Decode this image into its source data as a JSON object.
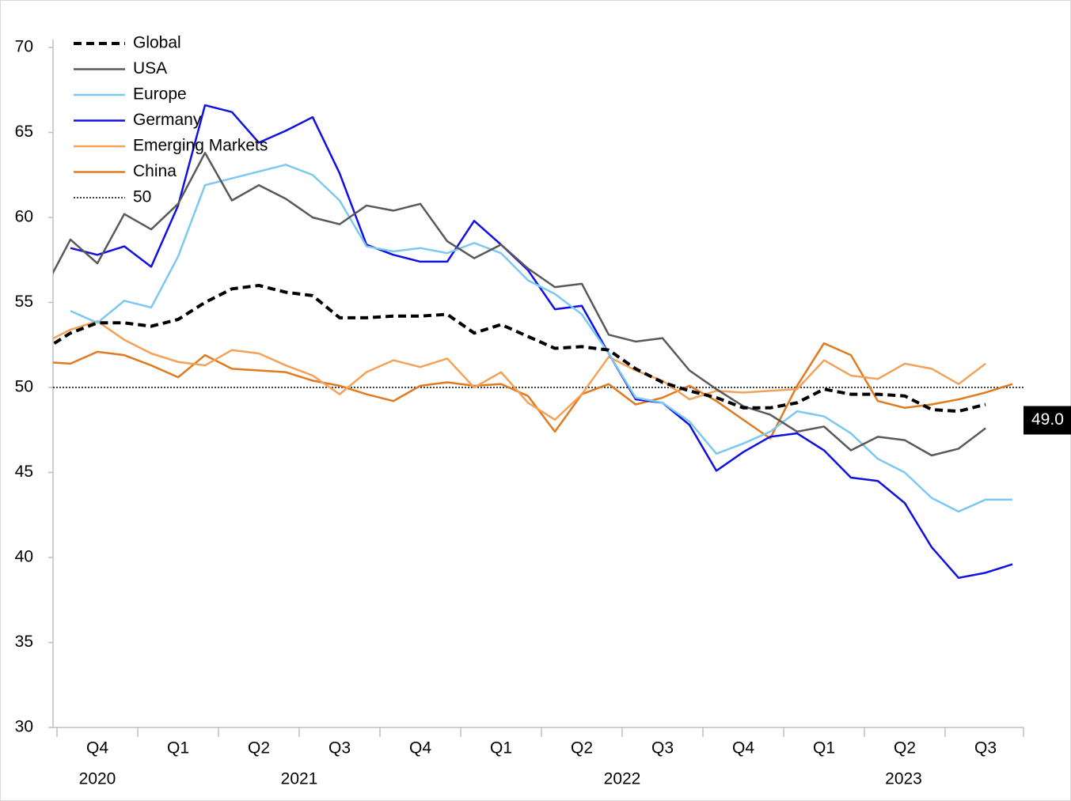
{
  "chart_data": {
    "type": "line",
    "categories": [
      null,
      null,
      "Q4",
      null,
      null,
      "Q1",
      null,
      null,
      "Q2",
      null,
      null,
      "Q3",
      null,
      null,
      "Q4",
      null,
      null,
      "Q1",
      null,
      null,
      "Q2",
      null,
      null,
      "Q3",
      null,
      null,
      "Q4",
      null,
      null,
      "Q1",
      null,
      null,
      "Q2",
      null,
      null,
      "Q3",
      null
    ],
    "years": [
      "2020",
      "2021",
      "2022",
      "2023"
    ],
    "series": [
      {
        "name": "Global",
        "color": "#000000",
        "dashed": true,
        "values": [
          52.2,
          53.2,
          53.8,
          53.8,
          53.6,
          54.0,
          55.0,
          55.8,
          56.0,
          55.6,
          55.4,
          54.1,
          54.1,
          54.2,
          54.2,
          54.3,
          53.2,
          53.7,
          53.0,
          52.3,
          52.4,
          52.2,
          51.1,
          50.3,
          49.8,
          49.4,
          48.8,
          48.8,
          49.1,
          49.9,
          49.6,
          49.6,
          49.5,
          48.7,
          48.6,
          49.0,
          null
        ],
        "value_labels": [
          null,
          null,
          null,
          null,
          null,
          null,
          null,
          null,
          null,
          null,
          null,
          null,
          null,
          null,
          null,
          null,
          null,
          null,
          null,
          null,
          null,
          null,
          null,
          null,
          null,
          null,
          null,
          null,
          null,
          null,
          null,
          null,
          null,
          null,
          null,
          "49.0",
          null
        ]
      },
      {
        "name": "USA",
        "color": "#595959",
        "values": [
          55.7,
          58.7,
          57.3,
          60.2,
          59.3,
          60.8,
          63.8,
          61.0,
          61.9,
          61.1,
          60.0,
          59.6,
          60.7,
          60.4,
          60.8,
          58.6,
          57.6,
          58.4,
          57.0,
          55.9,
          56.1,
          53.1,
          52.7,
          52.9,
          51.0,
          49.9,
          48.9,
          48.4,
          47.4,
          47.7,
          46.3,
          47.1,
          46.9,
          46.0,
          46.4,
          47.6,
          null
        ]
      },
      {
        "name": "Europe",
        "color": "#7CC8F0",
        "values": [
          null,
          54.5,
          53.8,
          55.1,
          54.7,
          57.7,
          61.9,
          62.3,
          62.7,
          63.1,
          62.5,
          61.0,
          58.3,
          58.0,
          58.2,
          57.9,
          58.5,
          57.9,
          56.3,
          55.5,
          54.3,
          52.0,
          49.4,
          49.1,
          48.0,
          46.1,
          46.7,
          47.4,
          48.6,
          48.3,
          47.3,
          45.8,
          45.0,
          43.5,
          42.7,
          43.4,
          43.4
        ]
      },
      {
        "name": "Germany",
        "color": "#1010E0",
        "values": [
          null,
          58.2,
          57.8,
          58.3,
          57.1,
          60.7,
          66.6,
          66.2,
          64.4,
          65.1,
          65.9,
          62.6,
          58.4,
          57.8,
          57.4,
          57.4,
          59.8,
          58.4,
          56.9,
          54.6,
          54.8,
          52.0,
          49.3,
          49.1,
          47.8,
          45.1,
          46.2,
          47.1,
          47.3,
          46.3,
          44.7,
          44.5,
          43.2,
          40.6,
          38.8,
          39.1,
          39.6
        ]
      },
      {
        "name": "Emerging Markets",
        "color": "#F4A15A",
        "values": [
          52.6,
          53.4,
          53.9,
          52.8,
          52.0,
          51.5,
          51.3,
          52.2,
          52.0,
          51.3,
          50.7,
          49.6,
          50.9,
          51.6,
          51.2,
          51.7,
          50.0,
          50.9,
          49.1,
          48.1,
          49.6,
          51.8,
          51.0,
          50.4,
          49.3,
          49.8,
          49.7,
          49.8,
          49.9,
          51.6,
          50.7,
          50.5,
          51.4,
          51.1,
          50.2,
          51.4,
          null
        ]
      },
      {
        "name": "China",
        "color": "#E07A1F",
        "values": [
          51.5,
          51.4,
          52.1,
          51.9,
          51.3,
          50.6,
          51.9,
          51.1,
          51.0,
          50.9,
          50.4,
          50.1,
          49.6,
          49.2,
          50.1,
          50.3,
          50.1,
          50.2,
          49.5,
          47.4,
          49.6,
          50.2,
          49.0,
          49.4,
          50.1,
          49.2,
          48.1,
          47.0,
          50.1,
          52.6,
          51.9,
          49.2,
          48.8,
          49.0,
          49.3,
          49.7,
          50.2
        ]
      }
    ],
    "reference_line": {
      "name": "50",
      "value": 50,
      "color": "#000000"
    },
    "ylim": [
      30,
      70
    ],
    "yticks": [
      30,
      35,
      40,
      45,
      50,
      55,
      60,
      65,
      70
    ],
    "grid": false,
    "legend": "upper left"
  }
}
